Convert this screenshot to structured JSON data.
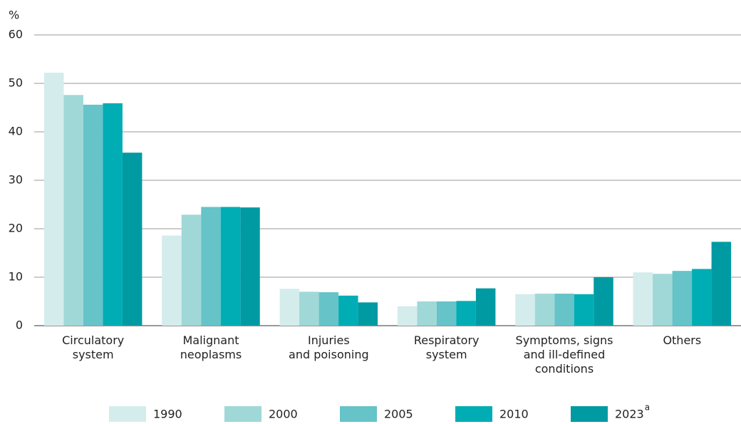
{
  "chart_data": {
    "type": "bar",
    "y_axis_label": "%",
    "categories": [
      "Circulatory\nsystem",
      "Malignant\nneoplasms",
      "Injuries\nand poisoning",
      "Respiratory\nsystem",
      "Symptoms, signs\nand ill-defined\nconditions",
      "Others"
    ],
    "series": [
      {
        "name": "1990",
        "color": "#d4ecec",
        "values": [
          52.2,
          18.6,
          7.6,
          4.0,
          6.5,
          11.0
        ]
      },
      {
        "name": "2000",
        "color": "#a0d8d8",
        "values": [
          47.6,
          22.9,
          7.0,
          5.0,
          6.6,
          10.7
        ]
      },
      {
        "name": "2005",
        "color": "#66c3c8",
        "values": [
          45.6,
          24.5,
          6.9,
          5.0,
          6.6,
          11.3
        ]
      },
      {
        "name": "2010",
        "color": "#00adb5",
        "values": [
          45.9,
          24.5,
          6.2,
          5.1,
          6.5,
          11.7
        ]
      },
      {
        "name": "2023",
        "superscript": "a",
        "color": "#009aa3",
        "values": [
          35.7,
          24.4,
          4.8,
          7.7,
          10.0,
          17.3
        ]
      }
    ],
    "ylim": [
      0,
      60
    ],
    "yticks": [
      0,
      10,
      20,
      30,
      40,
      50,
      60
    ],
    "grid": true
  }
}
